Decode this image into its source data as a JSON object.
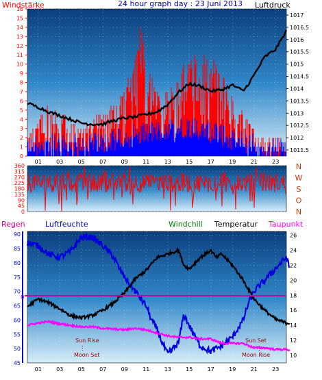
{
  "title": "24 hour graph day : 23 Juni 2013",
  "labels": {
    "windstaerke": "Windstärke",
    "luftdruck": "Luftdruck",
    "regen": "Regen",
    "luftfeuchte": "Luftfeuchte",
    "windchill": "Windchill",
    "temperatur": "Temperatur",
    "taupunkt": "Taupunkt",
    "sun_rise": "Sun Rise",
    "moon_set_1": "Moon Set",
    "sun_set": "Sun Set",
    "moon_rise": "Moon Rise",
    "zero_marker": "0"
  },
  "colors": {
    "windstaerke": "#ff0000",
    "luftdruck": "#000000",
    "regen": "#cc0099",
    "luftfeuchte": "#0000cc",
    "windchill": "#008000",
    "temperatur": "#000000",
    "taupunkt": "#ff00ff",
    "dir_labels": "#cc3300",
    "sun_moon": "#990000"
  },
  "chart_data": [
    {
      "type": "bar",
      "name": "wind",
      "x_ticks": [
        "01",
        "03",
        "05",
        "07",
        "09",
        "11",
        "13",
        "15",
        "17",
        "19",
        "21",
        "23"
      ],
      "x_range": [
        0,
        24
      ],
      "left_ylim": [
        0,
        16
      ],
      "left_ticks": [
        0,
        1,
        2,
        3,
        4,
        5,
        6,
        7,
        8,
        9,
        10,
        11,
        12,
        13,
        14,
        15,
        16
      ],
      "right_ylim": [
        1011.25,
        1017.25
      ],
      "right_ticks": [
        "1011.5",
        "1012",
        "1012.5",
        "1013",
        "1013.5",
        "1014",
        "1014.5",
        "1015",
        "1015.5",
        "1016",
        "1016.5",
        "1017"
      ],
      "windstaerke_max": [
        [
          0,
          2
        ],
        [
          1,
          4
        ],
        [
          2,
          6
        ],
        [
          3,
          5
        ],
        [
          4,
          4
        ],
        [
          5,
          3
        ],
        [
          6,
          4
        ],
        [
          7,
          5
        ],
        [
          8,
          6
        ],
        [
          9,
          7
        ],
        [
          10,
          11
        ],
        [
          10.5,
          15
        ],
        [
          11,
          10
        ],
        [
          12,
          7
        ],
        [
          13,
          7
        ],
        [
          14,
          9
        ],
        [
          15,
          11
        ],
        [
          16,
          12
        ],
        [
          17,
          11
        ],
        [
          18,
          9
        ],
        [
          19,
          7
        ],
        [
          20,
          5
        ],
        [
          21,
          3
        ],
        [
          22,
          2
        ],
        [
          23,
          2
        ],
        [
          24,
          2
        ]
      ],
      "windstaerke_min": [
        [
          0,
          0
        ],
        [
          6,
          0
        ],
        [
          10,
          1
        ],
        [
          15,
          2
        ],
        [
          18,
          1
        ],
        [
          21,
          0
        ],
        [
          24,
          0
        ]
      ],
      "luftdruck": [
        [
          0,
          1013.4
        ],
        [
          1,
          1013.25
        ],
        [
          2,
          1013.05
        ],
        [
          3,
          1012.9
        ],
        [
          4,
          1012.75
        ],
        [
          5,
          1012.6
        ],
        [
          6,
          1012.55
        ],
        [
          7,
          1012.55
        ],
        [
          8,
          1012.7
        ],
        [
          9,
          1012.8
        ],
        [
          10,
          1012.85
        ],
        [
          11,
          1012.95
        ],
        [
          12,
          1013.05
        ],
        [
          13,
          1013.35
        ],
        [
          14,
          1013.85
        ],
        [
          15,
          1014.2
        ],
        [
          16,
          1014.1
        ],
        [
          17,
          1013.9
        ],
        [
          18,
          1013.95
        ],
        [
          19,
          1014.15
        ],
        [
          20,
          1013.9
        ],
        [
          20.5,
          1014.2
        ],
        [
          21,
          1014.55
        ],
        [
          22,
          1015.3
        ],
        [
          23,
          1015.6
        ],
        [
          24,
          1016.35
        ]
      ]
    },
    {
      "type": "scatter",
      "name": "wind_direction",
      "x_range": [
        0,
        24
      ],
      "ylim": [
        0,
        360
      ],
      "y_ticks": [
        0,
        45,
        90,
        135,
        180,
        225,
        270,
        315,
        360
      ],
      "dir_labels": [
        "N",
        "W",
        "S",
        "O",
        "N"
      ],
      "band": [
        [
          0,
          150
        ],
        [
          5,
          300
        ]
      ]
    },
    {
      "type": "line",
      "name": "temperature_humidity",
      "x_ticks": [
        "01",
        "03",
        "05",
        "07",
        "09",
        "11",
        "13",
        "15",
        "17",
        "19",
        "21",
        "23"
      ],
      "x_range": [
        0,
        24
      ],
      "left_ylim": [
        45,
        91
      ],
      "left_ticks": [
        45,
        50,
        55,
        60,
        65,
        70,
        75,
        80,
        85,
        90
      ],
      "right_ylim": [
        9,
        26.5
      ],
      "right_ticks": [
        10,
        12,
        14,
        16,
        18,
        20,
        22,
        24,
        26
      ],
      "regen": [
        [
          0,
          0
        ],
        [
          24,
          0
        ]
      ],
      "luftfeuchte": [
        [
          0,
          87
        ],
        [
          1,
          86
        ],
        [
          2,
          83
        ],
        [
          3,
          82
        ],
        [
          4,
          84
        ],
        [
          5,
          89
        ],
        [
          6,
          89
        ],
        [
          7,
          86
        ],
        [
          7.5,
          84
        ],
        [
          8,
          82
        ],
        [
          8.5,
          78
        ],
        [
          9,
          75
        ],
        [
          10,
          70
        ],
        [
          11,
          65
        ],
        [
          11.5,
          60
        ],
        [
          12,
          57
        ],
        [
          12.5,
          52
        ],
        [
          13,
          48
        ],
        [
          14,
          52
        ],
        [
          14.5,
          62
        ],
        [
          15,
          58
        ],
        [
          16,
          51
        ],
        [
          17,
          49
        ],
        [
          18,
          51
        ],
        [
          19,
          54
        ],
        [
          20,
          60
        ],
        [
          20.5,
          66
        ],
        [
          21,
          70
        ],
        [
          22,
          74
        ],
        [
          23,
          78
        ],
        [
          24,
          82
        ],
        [
          24.3,
          78
        ]
      ],
      "temperatur": [
        [
          0,
          16.5
        ],
        [
          1,
          17.5
        ],
        [
          2,
          17
        ],
        [
          3,
          16.2
        ],
        [
          4,
          15.3
        ],
        [
          5,
          15
        ],
        [
          6,
          15.3
        ],
        [
          7,
          16
        ],
        [
          8,
          17
        ],
        [
          9,
          18.3
        ],
        [
          10,
          20.2
        ],
        [
          11,
          21.3
        ],
        [
          12,
          23
        ],
        [
          13,
          23.5
        ],
        [
          14,
          24
        ],
        [
          14.5,
          22
        ],
        [
          15,
          21.5
        ],
        [
          16,
          23
        ],
        [
          17,
          24
        ],
        [
          17.5,
          23
        ],
        [
          18,
          23.5
        ],
        [
          19,
          22
        ],
        [
          20,
          20
        ],
        [
          21,
          17.5
        ],
        [
          22,
          16
        ],
        [
          23,
          14.8
        ],
        [
          24,
          14.3
        ],
        [
          24.3,
          14.3
        ]
      ],
      "taupunkt": [
        [
          0,
          14
        ],
        [
          1,
          14.3
        ],
        [
          2,
          14.5
        ],
        [
          3,
          14.2
        ],
        [
          4,
          14
        ],
        [
          5,
          13.8
        ],
        [
          6,
          13.8
        ],
        [
          7,
          13.6
        ],
        [
          8,
          13.5
        ],
        [
          9,
          13.4
        ],
        [
          10,
          13.6
        ],
        [
          11,
          13.4
        ],
        [
          12,
          13
        ],
        [
          13,
          12.6
        ],
        [
          14,
          12.4
        ],
        [
          15,
          12.4
        ],
        [
          16,
          12.2
        ],
        [
          17,
          12.2
        ],
        [
          18,
          11.6
        ],
        [
          19,
          11.6
        ],
        [
          20,
          11.6
        ],
        [
          21,
          11
        ],
        [
          22,
          11
        ],
        [
          23,
          10.8
        ],
        [
          24,
          10.8
        ],
        [
          24.3,
          10.7
        ]
      ],
      "sun_rise_hour": 5.1,
      "sun_set_hour": 21.5,
      "moon_set_hour": 5.2,
      "moon_rise_hour": 21.6
    }
  ]
}
